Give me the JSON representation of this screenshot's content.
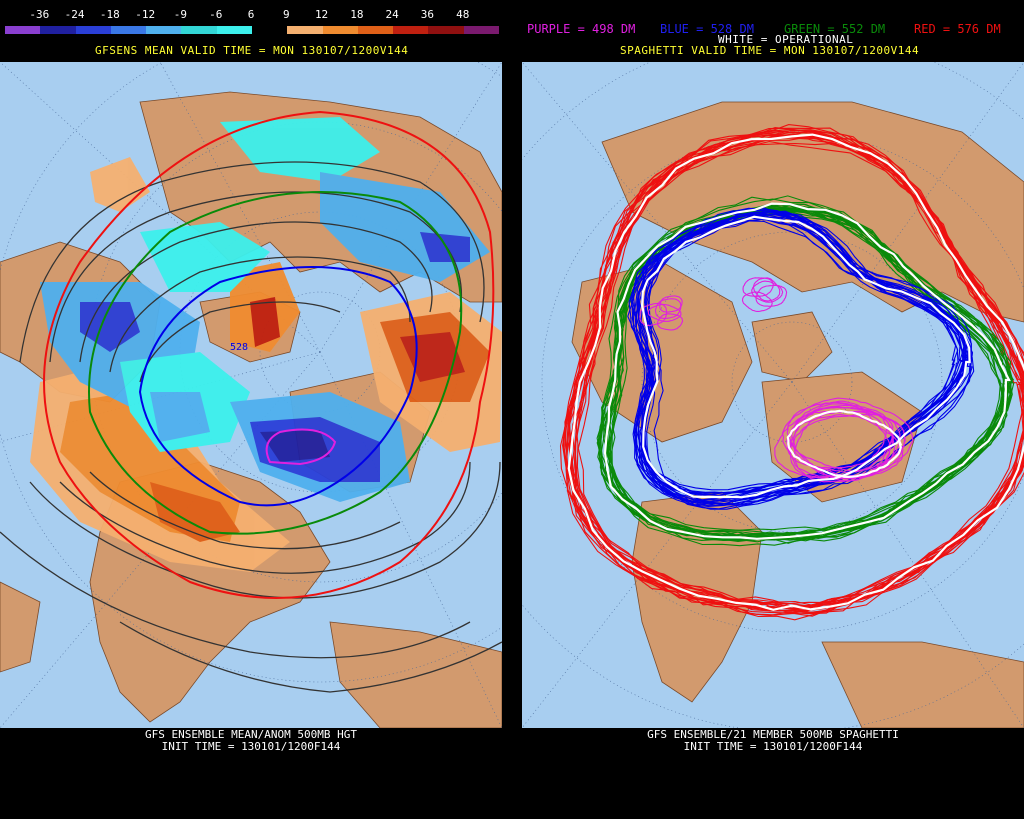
{
  "left": {
    "scale_ticks": [
      "-36",
      "-24",
      "-18",
      "-12",
      "-9",
      "-6",
      "6",
      "9",
      "12",
      "18",
      "24",
      "36",
      "48"
    ],
    "scale_colors": [
      "#8a3fd0",
      "#2020a0",
      "#2a3fd8",
      "#3a78e6",
      "#4fb0ee",
      "#33d6d6",
      "#3cf0ec",
      "#000000",
      "#f5b070",
      "#f08c30",
      "#e06018",
      "#c02010",
      "#901010",
      "#7a1a6e"
    ],
    "valid_time": "GFSENS MEAN VALID TIME = MON 130107/1200V144",
    "contour_label": "528",
    "bottom_line1": "GFS ENSEMBLE MEAN/ANOM 500MB HGT",
    "bottom_line2": "INIT TIME = 130101/1200F144"
  },
  "right": {
    "legend": {
      "purple": "PURPLE = 498 DM",
      "blue": "BLUE = 528 DM",
      "green": "GREEN = 552 DM",
      "red": "RED = 576 DM",
      "white": "WHITE = OPERATIONAL"
    },
    "valid_time": "SPAGHETTI VALID TIME = MON 130107/1200V144",
    "bottom_line1": "GFS ENSEMBLE/21 MEMBER 500MB SPAGHETTI",
    "bottom_line2": "INIT TIME = 130101/1200F144"
  },
  "colors": {
    "ocean": "#a8cef0",
    "land": "#d29a6e",
    "purple": "#e020e0",
    "blue": "#0000e8",
    "green": "#0a8a0a",
    "red": "#ee1111",
    "white": "#ffffff",
    "header_yellow": "#ffff33"
  }
}
